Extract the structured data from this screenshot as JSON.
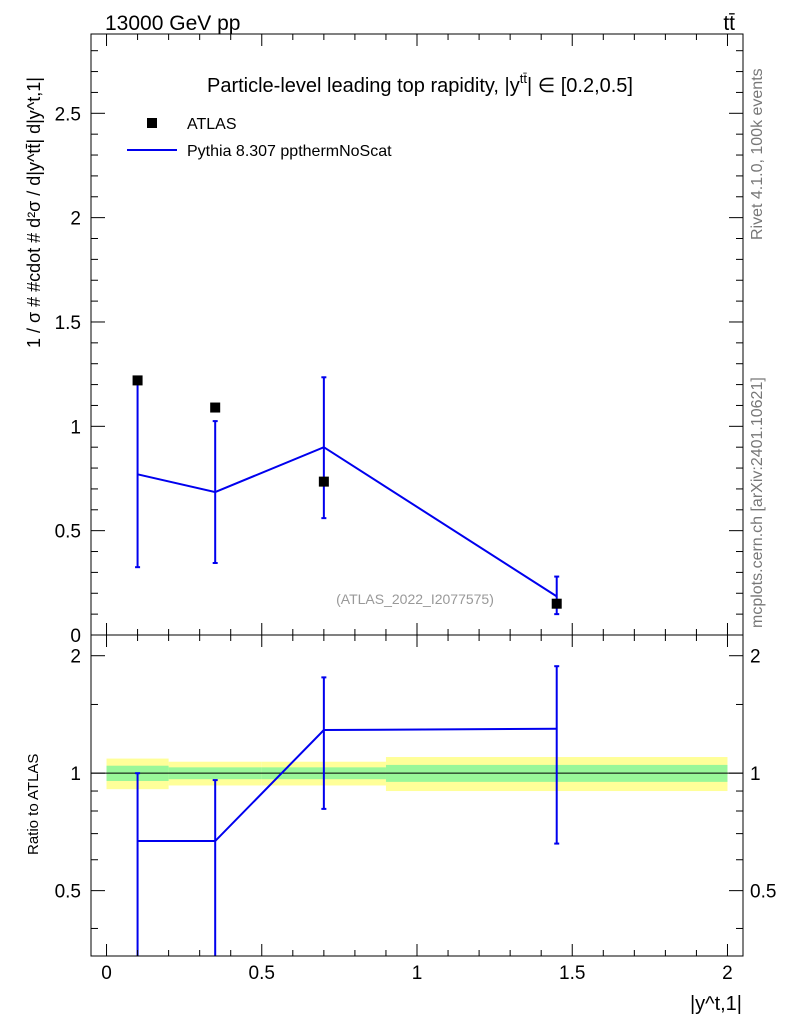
{
  "header": {
    "energy": "13000 GeV pp",
    "process": "tt̄"
  },
  "side_labels": {
    "rivet": "Rivet 4.1.0,  100k events",
    "source": "mcplots.cern.ch [arXiv:2401.10621]"
  },
  "chart_data": {
    "type": "scatter+line",
    "title_prefix": "Particle-level leading top rapidity, |y",
    "title_sup": "tt̄",
    "title_suffix": "| ∈ [0.2,0.5]",
    "analysis_tag": "(ATLAS_2022_I2077575)",
    "ylabel": "1 / σ # #cdot # d²σ / d|y^tt̄| d|y^t,1|",
    "xlabel": "|y^t,1|",
    "ratio_ylabel": "Ratio to ATLAS",
    "xlim": [
      -0.05,
      2.05
    ],
    "ylim_main": [
      0,
      2.88
    ],
    "ylim_ratio": [
      0.34,
      2.26
    ],
    "xticks": [
      "0",
      "0.5",
      "1",
      "1.5",
      "2"
    ],
    "yticks_main": [
      "0",
      "0.5",
      "1",
      "1.5",
      "2",
      "2.5"
    ],
    "yticks_ratio": [
      "0.5",
      "1",
      "2"
    ],
    "legend": [
      "ATLAS",
      "Pythia 8.307 ppthermNoScat"
    ],
    "data": {
      "name": "ATLAS",
      "x": [
        0.1,
        0.35,
        0.7,
        1.45
      ],
      "y": [
        1.22,
        1.09,
        0.735,
        0.15
      ]
    },
    "mc": {
      "name": "Pythia 8.307 ppthermNoScat",
      "x": [
        0.1,
        0.35,
        0.7,
        1.45
      ],
      "y": [
        0.77,
        0.685,
        0.9,
        0.185
      ],
      "err_lo": [
        0.445,
        0.34,
        0.34,
        0.085
      ],
      "err_hi": [
        0.445,
        0.34,
        0.335,
        0.095
      ]
    },
    "ratio": {
      "x": [
        0.1,
        0.35,
        0.7,
        1.45
      ],
      "y": [
        0.67,
        0.67,
        1.29,
        1.3
      ],
      "err_lo": [
        0.67,
        0.67,
        0.48,
        0.64
      ],
      "err_hi": [
        0.33,
        0.29,
        0.47,
        0.58
      ]
    },
    "bins": [
      {
        "lo": 0.0,
        "hi": 0.2,
        "green": 0.045,
        "yellow": 0.09
      },
      {
        "lo": 0.2,
        "hi": 0.5,
        "green": 0.035,
        "yellow": 0.07
      },
      {
        "lo": 0.5,
        "hi": 0.9,
        "green": 0.035,
        "yellow": 0.07
      },
      {
        "lo": 0.9,
        "hi": 2.0,
        "green": 0.05,
        "yellow": 0.1
      }
    ],
    "colors": {
      "mc": "#0000ee",
      "data": "#000000",
      "green": "#99f799",
      "yellow": "#ffff99"
    }
  }
}
